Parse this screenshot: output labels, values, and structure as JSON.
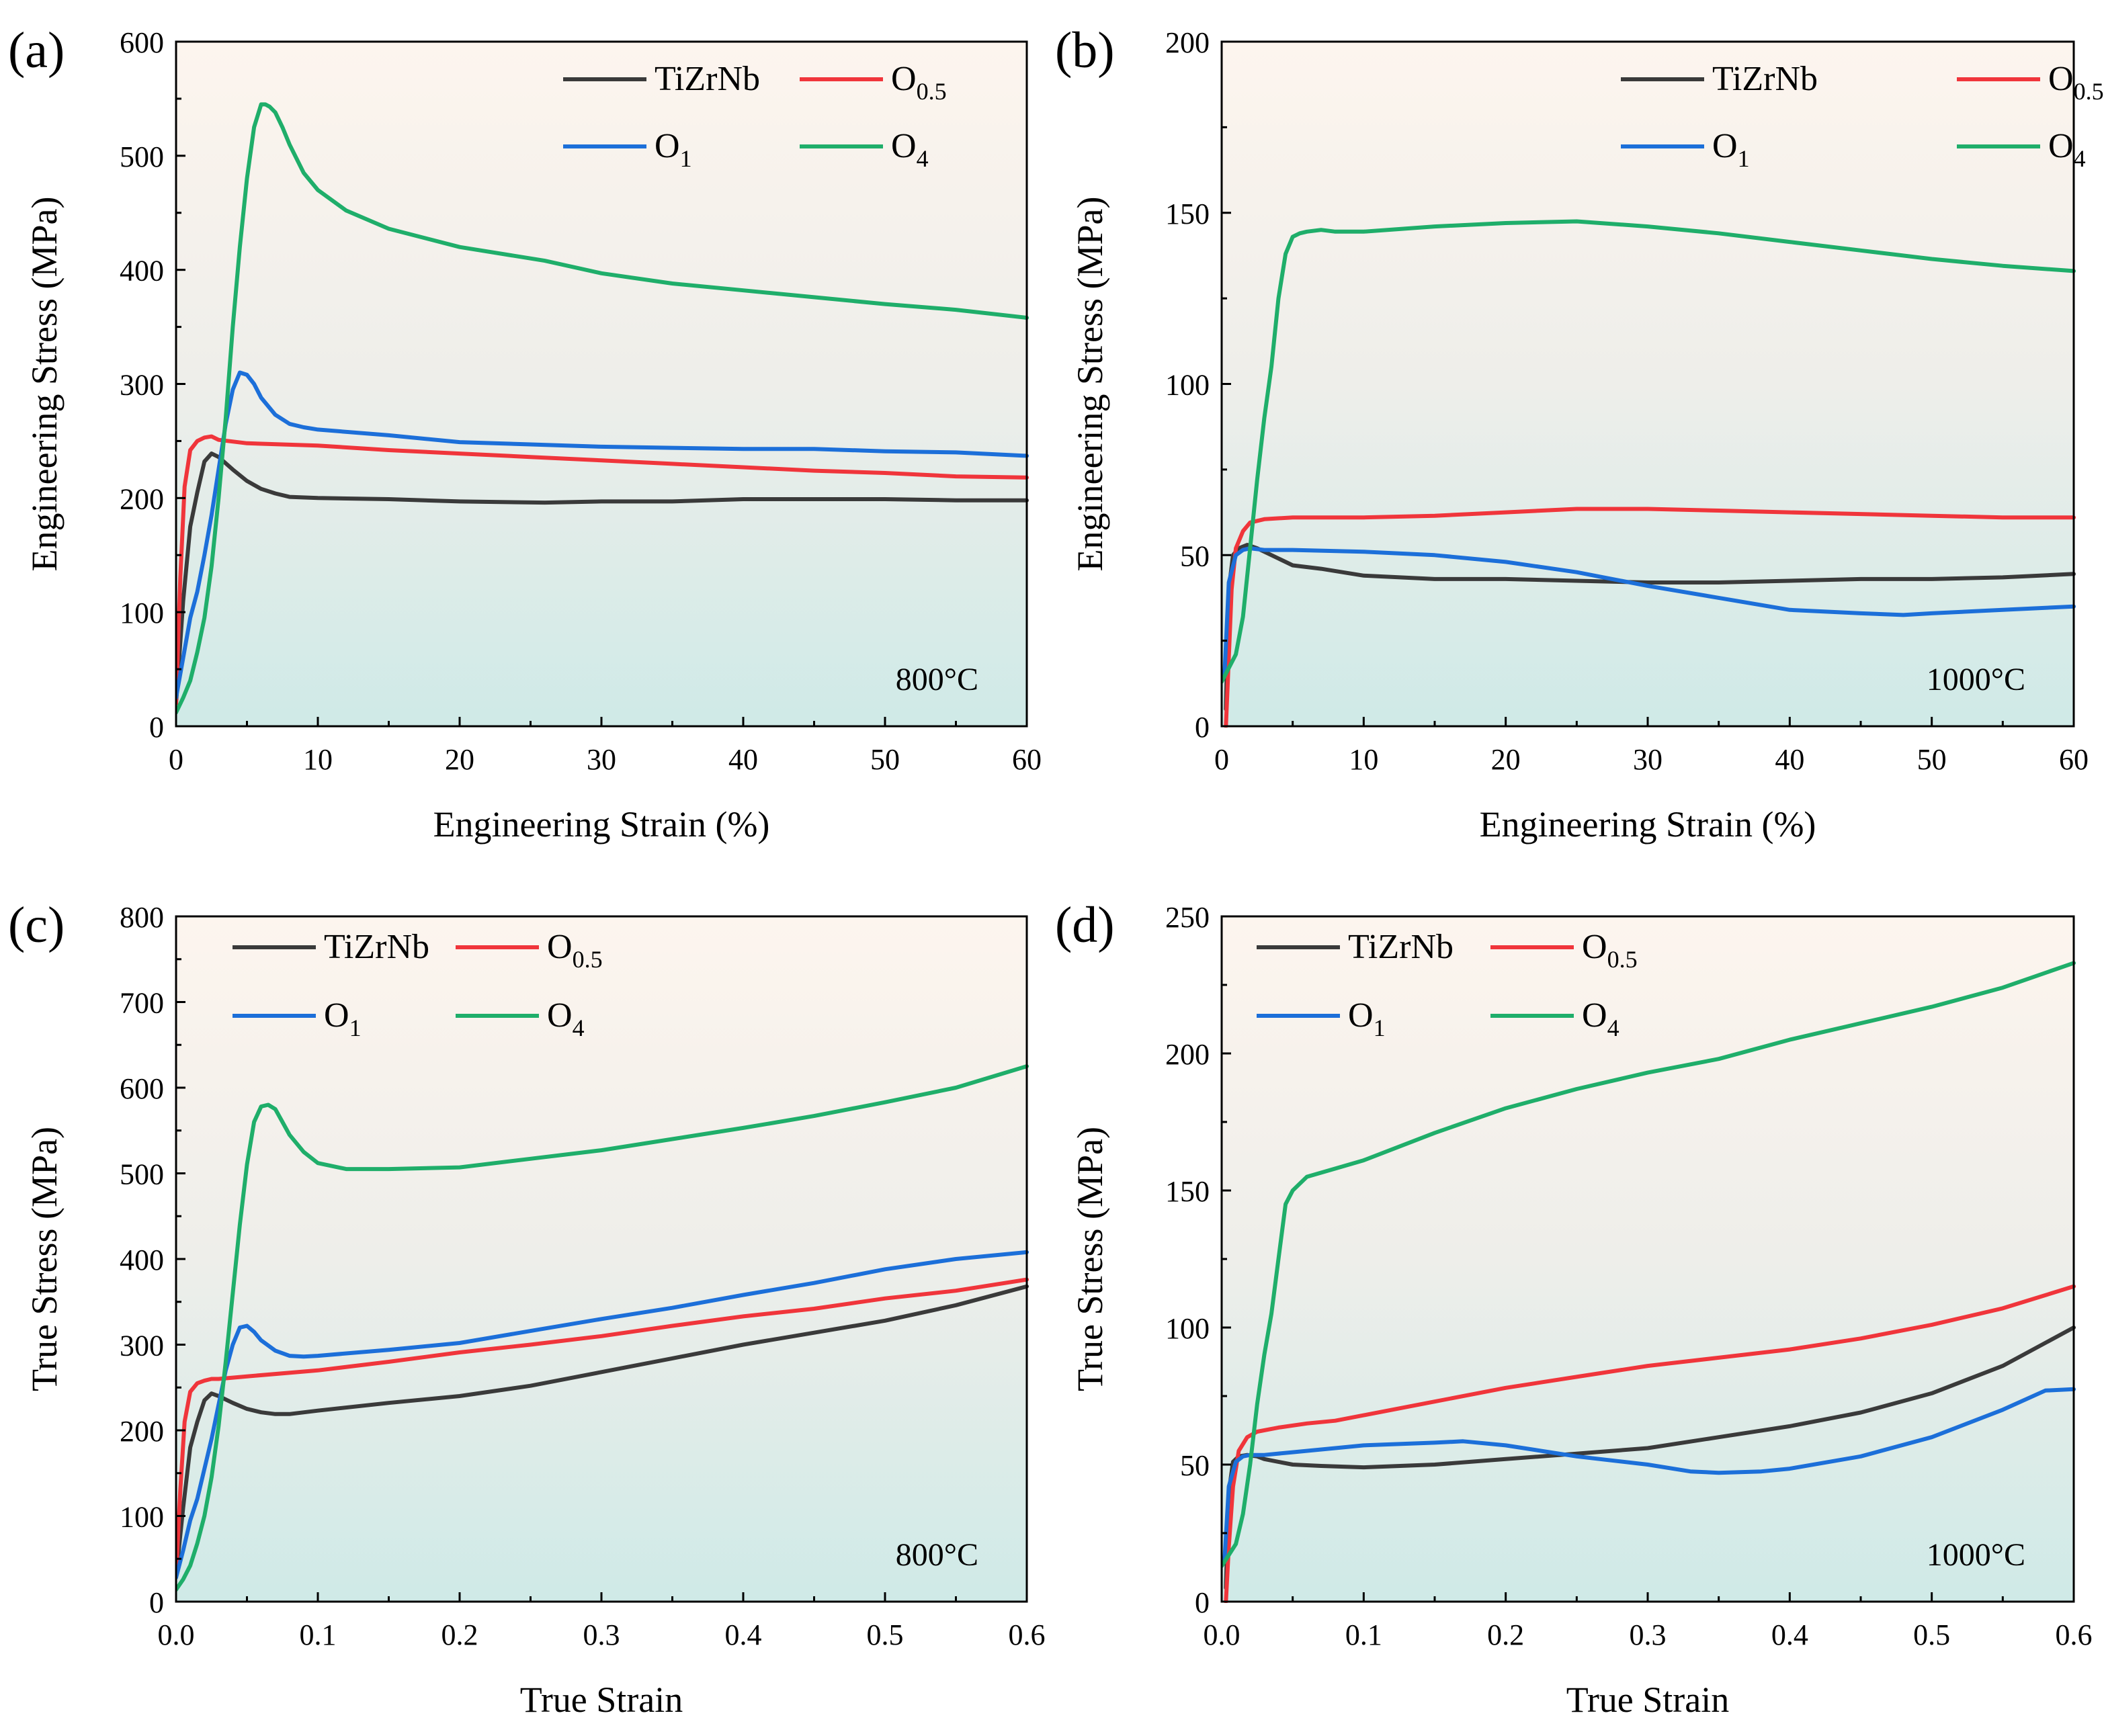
{
  "colors": {
    "TiZrNb": "#3a3a3a",
    "O0.5": "#f0353b",
    "O1": "#1c6fd9",
    "O4": "#1fae6a",
    "bg_top": "#fdf5ee",
    "bg_mid": "#eeeeea",
    "bg_bottom": "#cfeae7"
  },
  "legend_entries": [
    {
      "key": "TiZrNb",
      "base": "TiZrNb",
      "sub": ""
    },
    {
      "key": "O0.5",
      "base": "O",
      "sub": "0.5"
    },
    {
      "key": "O1",
      "base": "O",
      "sub": "1"
    },
    {
      "key": "O4",
      "base": "O",
      "sub": "4"
    }
  ],
  "chart_data": [
    {
      "panel": "(a)",
      "type": "line",
      "annotation": "800°C",
      "xlabel": "Engineering Strain (%)",
      "ylabel": "Engineering Stress (MPa)",
      "xlim": [
        0,
        60
      ],
      "ylim": [
        0,
        600
      ],
      "xticks": [
        0,
        10,
        20,
        30,
        40,
        50,
        60
      ],
      "xtick_labels": [
        "0",
        "10",
        "20",
        "30",
        "40",
        "50",
        "60"
      ],
      "yticks": [
        0,
        100,
        200,
        300,
        400,
        500,
        600
      ],
      "ytick_labels": [
        "0",
        "100",
        "200",
        "300",
        "400",
        "500",
        "600"
      ],
      "legend_position": "top-right",
      "series": [
        {
          "name": "TiZrNb",
          "x": [
            0,
            0.5,
            1.0,
            1.5,
            2.0,
            2.5,
            3.0,
            4.0,
            5.0,
            6.0,
            7.0,
            8.0,
            10,
            15,
            20,
            26,
            30,
            35,
            40,
            45,
            50,
            55,
            60
          ],
          "y": [
            20,
            110,
            175,
            205,
            232,
            239,
            236,
            225,
            215,
            208,
            204,
            201,
            200,
            199,
            197,
            196,
            197,
            197,
            199,
            199,
            199,
            198,
            198
          ]
        },
        {
          "name": "O0.5",
          "x": [
            0,
            0.3,
            0.6,
            1.0,
            1.5,
            2.0,
            2.5,
            3.0,
            5.0,
            10,
            15,
            20,
            25,
            30,
            35,
            40,
            45,
            50,
            55,
            60
          ],
          "y": [
            20,
            130,
            210,
            242,
            250,
            253,
            254,
            251,
            248,
            246,
            242,
            239,
            236,
            233,
            230,
            227,
            224,
            222,
            219,
            218
          ]
        },
        {
          "name": "O1",
          "x": [
            0,
            0.5,
            1.0,
            1.5,
            2.0,
            2.5,
            3.0,
            3.5,
            4.0,
            4.5,
            5.0,
            5.5,
            6.0,
            7.0,
            8.0,
            9.0,
            10,
            15,
            20,
            25,
            30,
            35,
            40,
            45,
            50,
            55,
            60
          ],
          "y": [
            25,
            60,
            95,
            118,
            150,
            185,
            225,
            265,
            295,
            310,
            308,
            300,
            288,
            273,
            265,
            262,
            260,
            255,
            249,
            247,
            245,
            244,
            243,
            243,
            241,
            240,
            237
          ]
        },
        {
          "name": "O4",
          "x": [
            0,
            0.5,
            1.0,
            1.5,
            2.0,
            2.5,
            3.0,
            3.5,
            4.0,
            4.5,
            5.0,
            5.5,
            6.0,
            6.3,
            6.6,
            7.0,
            7.5,
            8.0,
            9.0,
            10,
            12,
            15,
            20,
            26,
            30,
            35,
            40,
            45,
            50,
            55,
            60
          ],
          "y": [
            12,
            25,
            40,
            65,
            95,
            140,
            200,
            270,
            350,
            420,
            480,
            525,
            545,
            545,
            543,
            538,
            525,
            510,
            485,
            470,
            452,
            436,
            420,
            408,
            397,
            388,
            382,
            376,
            370,
            365,
            358
          ]
        }
      ]
    },
    {
      "panel": "(b)",
      "type": "line",
      "annotation": "1000°C",
      "xlabel": "Engineering Strain (%)",
      "ylabel": "Engineering Stress (MPa)",
      "xlim": [
        0,
        60
      ],
      "ylim": [
        0,
        200
      ],
      "xticks": [
        0,
        10,
        20,
        30,
        40,
        50,
        60
      ],
      "xtick_labels": [
        "0",
        "10",
        "20",
        "30",
        "40",
        "50",
        "60"
      ],
      "yticks": [
        0,
        50,
        100,
        150,
        200
      ],
      "ytick_labels": [
        "0",
        "50",
        "100",
        "150",
        "200"
      ],
      "legend_position": "top-right",
      "series": [
        {
          "name": "TiZrNb",
          "x": [
            0.3,
            0.5,
            0.8,
            1.2,
            1.8,
            2.5,
            3.0,
            4.0,
            5.0,
            7.0,
            10,
            15,
            20,
            25,
            30,
            35,
            40,
            45,
            50,
            55,
            60
          ],
          "y": [
            5,
            40,
            50,
            52,
            53,
            52,
            51,
            49,
            47,
            46,
            44,
            43,
            43,
            42.5,
            42,
            42,
            42.5,
            43,
            43,
            43.5,
            44.5
          ]
        },
        {
          "name": "O0.5",
          "x": [
            0.3,
            0.5,
            0.7,
            1.0,
            1.5,
            2.0,
            3.0,
            5.0,
            10,
            15,
            20,
            25,
            30,
            35,
            40,
            45,
            50,
            55,
            60
          ],
          "y": [
            0,
            20,
            40,
            52,
            57,
            59.5,
            60.5,
            61,
            61,
            61.5,
            62.5,
            63.5,
            63.5,
            63,
            62.5,
            62,
            61.5,
            61,
            61
          ]
        },
        {
          "name": "O1",
          "x": [
            0.2,
            0.5,
            1.0,
            1.5,
            2.0,
            3.0,
            5.0,
            10,
            15,
            20,
            25,
            30,
            35,
            40,
            45,
            48,
            50,
            55,
            60
          ],
          "y": [
            15,
            42,
            50,
            51.5,
            52,
            51.5,
            51.5,
            51,
            50,
            48,
            45,
            41,
            37.5,
            34,
            33,
            32.5,
            33,
            34,
            35
          ]
        },
        {
          "name": "O4",
          "x": [
            0,
            0.5,
            1.0,
            1.5,
            2.0,
            2.5,
            3.0,
            3.5,
            4.0,
            4.5,
            5.0,
            5.5,
            6.0,
            7.0,
            8.0,
            10,
            15,
            20,
            25,
            30,
            35,
            40,
            45,
            50,
            55,
            60
          ],
          "y": [
            13,
            17,
            21,
            32,
            52,
            72,
            90,
            105,
            125,
            138,
            143,
            144,
            144.5,
            145,
            144.5,
            144.5,
            146,
            147,
            147.5,
            146,
            144,
            141.5,
            139,
            136.5,
            134.5,
            133
          ]
        }
      ]
    },
    {
      "panel": "(c)",
      "type": "line",
      "annotation": "800°C",
      "xlabel": "True Strain",
      "ylabel": "True Stress (MPa)",
      "xlim": [
        0,
        0.6
      ],
      "ylim": [
        0,
        800
      ],
      "xticks": [
        0,
        0.1,
        0.2,
        0.3,
        0.4,
        0.5,
        0.6
      ],
      "xtick_labels": [
        "0.0",
        "0.1",
        "0.2",
        "0.3",
        "0.4",
        "0.5",
        "0.6"
      ],
      "yticks": [
        0,
        100,
        200,
        300,
        400,
        500,
        600,
        700,
        800
      ],
      "ytick_labels": [
        "0",
        "100",
        "200",
        "300",
        "400",
        "500",
        "600",
        "700",
        "800"
      ],
      "legend_position": "top-left",
      "series": [
        {
          "name": "TiZrNb",
          "x": [
            0,
            0.005,
            0.01,
            0.015,
            0.02,
            0.025,
            0.03,
            0.04,
            0.05,
            0.06,
            0.07,
            0.08,
            0.1,
            0.15,
            0.2,
            0.25,
            0.3,
            0.35,
            0.4,
            0.45,
            0.5,
            0.55,
            0.6
          ],
          "y": [
            30,
            110,
            180,
            210,
            235,
            243,
            240,
            232,
            225,
            221,
            219,
            219,
            223,
            232,
            240,
            252,
            268,
            284,
            300,
            314,
            328,
            346,
            368
          ]
        },
        {
          "name": "O0.5",
          "x": [
            0,
            0.003,
            0.006,
            0.01,
            0.015,
            0.02,
            0.025,
            0.03,
            0.05,
            0.1,
            0.15,
            0.2,
            0.25,
            0.3,
            0.35,
            0.4,
            0.45,
            0.5,
            0.55,
            0.6
          ],
          "y": [
            30,
            130,
            210,
            245,
            255,
            258,
            260,
            260,
            263,
            270,
            280,
            291,
            300,
            310,
            322,
            333,
            342,
            354,
            363,
            376
          ]
        },
        {
          "name": "O1",
          "x": [
            0,
            0.005,
            0.01,
            0.015,
            0.02,
            0.025,
            0.03,
            0.035,
            0.04,
            0.045,
            0.05,
            0.055,
            0.06,
            0.07,
            0.08,
            0.09,
            0.1,
            0.15,
            0.2,
            0.25,
            0.3,
            0.35,
            0.4,
            0.45,
            0.5,
            0.55,
            0.6
          ],
          "y": [
            28,
            60,
            95,
            120,
            155,
            190,
            230,
            270,
            300,
            320,
            322,
            315,
            305,
            293,
            287,
            286,
            287,
            294,
            302,
            316,
            330,
            343,
            358,
            372,
            388,
            400,
            408
          ]
        },
        {
          "name": "O4",
          "x": [
            0,
            0.005,
            0.01,
            0.015,
            0.02,
            0.025,
            0.03,
            0.035,
            0.04,
            0.045,
            0.05,
            0.055,
            0.06,
            0.065,
            0.07,
            0.075,
            0.08,
            0.09,
            0.1,
            0.12,
            0.15,
            0.2,
            0.25,
            0.3,
            0.35,
            0.4,
            0.45,
            0.5,
            0.55,
            0.6
          ],
          "y": [
            14,
            26,
            42,
            68,
            100,
            145,
            205,
            280,
            360,
            440,
            510,
            560,
            578,
            580,
            575,
            560,
            545,
            525,
            512,
            505,
            505,
            507,
            517,
            527,
            540,
            553,
            567,
            583,
            600,
            625
          ]
        }
      ]
    },
    {
      "panel": "(d)",
      "type": "line",
      "annotation": "1000°C",
      "xlabel": "True Strain",
      "ylabel": "True Stress (MPa)",
      "xlim": [
        0,
        0.6
      ],
      "ylim": [
        0,
        250
      ],
      "xticks": [
        0,
        0.1,
        0.2,
        0.3,
        0.4,
        0.5,
        0.6
      ],
      "xtick_labels": [
        "0.0",
        "0.1",
        "0.2",
        "0.3",
        "0.4",
        "0.5",
        "0.6"
      ],
      "yticks": [
        0,
        50,
        100,
        150,
        200,
        250
      ],
      "ytick_labels": [
        "0",
        "50",
        "100",
        "150",
        "200",
        "250"
      ],
      "legend_position": "top-left",
      "series": [
        {
          "name": "TiZrNb",
          "x": [
            0.003,
            0.005,
            0.008,
            0.012,
            0.018,
            0.025,
            0.03,
            0.04,
            0.05,
            0.07,
            0.1,
            0.15,
            0.2,
            0.25,
            0.3,
            0.35,
            0.4,
            0.45,
            0.5,
            0.55,
            0.6
          ],
          "y": [
            5,
            40,
            51,
            53,
            53.5,
            53,
            52,
            51,
            50,
            49.5,
            49,
            50,
            52,
            54,
            56,
            60,
            64,
            69,
            76,
            86,
            100
          ]
        },
        {
          "name": "O0.5",
          "x": [
            0.003,
            0.005,
            0.008,
            0.012,
            0.018,
            0.025,
            0.04,
            0.06,
            0.08,
            0.1,
            0.15,
            0.2,
            0.25,
            0.3,
            0.35,
            0.4,
            0.45,
            0.5,
            0.55,
            0.6
          ],
          "y": [
            0,
            20,
            42,
            55,
            60,
            62,
            63.5,
            65,
            66,
            68,
            73,
            78,
            82,
            86,
            89,
            92,
            96,
            101,
            107,
            115
          ]
        },
        {
          "name": "O1",
          "x": [
            0.002,
            0.005,
            0.01,
            0.015,
            0.02,
            0.03,
            0.05,
            0.08,
            0.1,
            0.15,
            0.17,
            0.2,
            0.25,
            0.3,
            0.33,
            0.35,
            0.38,
            0.4,
            0.45,
            0.5,
            0.55,
            0.58,
            0.6
          ],
          "y": [
            15,
            42,
            51,
            53,
            53.5,
            53.5,
            54.5,
            56,
            57,
            58,
            58.5,
            57,
            53,
            50,
            47.5,
            47,
            47.5,
            48.5,
            53,
            60,
            70,
            77,
            77.5
          ]
        },
        {
          "name": "O4",
          "x": [
            0,
            0.005,
            0.01,
            0.015,
            0.02,
            0.025,
            0.03,
            0.035,
            0.04,
            0.045,
            0.05,
            0.06,
            0.08,
            0.1,
            0.15,
            0.2,
            0.25,
            0.3,
            0.35,
            0.4,
            0.45,
            0.5,
            0.55,
            0.6
          ],
          "y": [
            13,
            17,
            21,
            32,
            50,
            72,
            90,
            105,
            125,
            145,
            150,
            155,
            158,
            161,
            171,
            180,
            187,
            193,
            198,
            205,
            211,
            217,
            224,
            233
          ]
        }
      ]
    }
  ]
}
